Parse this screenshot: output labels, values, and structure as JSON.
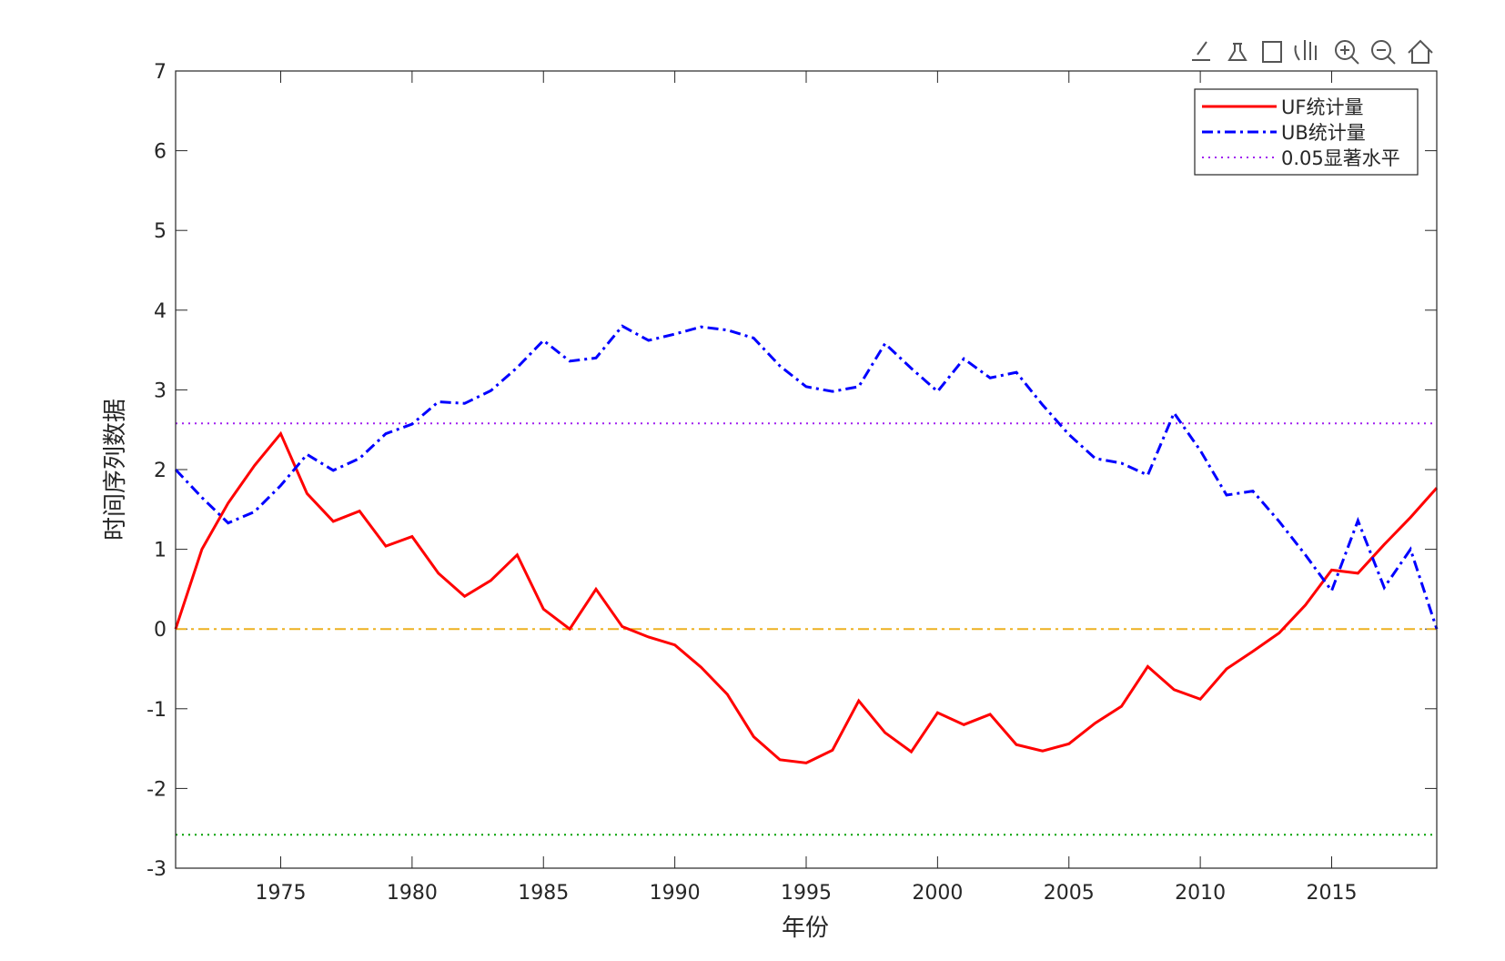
{
  "chart_data": {
    "type": "line",
    "xlabel": "年份",
    "ylabel": "时间序列数据",
    "x": [
      1971,
      1972,
      1973,
      1974,
      1975,
      1976,
      1977,
      1978,
      1979,
      1980,
      1981,
      1982,
      1983,
      1984,
      1985,
      1986,
      1987,
      1988,
      1989,
      1990,
      1991,
      1992,
      1993,
      1994,
      1995,
      1996,
      1997,
      1998,
      1999,
      2000,
      2001,
      2002,
      2003,
      2004,
      2005,
      2006,
      2007,
      2008,
      2009,
      2010,
      2011,
      2012,
      2013,
      2014,
      2015,
      2016,
      2017,
      2018,
      2019
    ],
    "series": [
      {
        "name": "UF统计量",
        "color": "#ff0000",
        "style": "solid",
        "values": [
          0,
          1.0,
          1.58,
          2.05,
          2.45,
          1.7,
          1.35,
          1.48,
          1.04,
          1.16,
          0.7,
          0.41,
          0.61,
          0.93,
          0.25,
          0.0,
          0.5,
          0.03,
          -0.1,
          -0.2,
          -0.48,
          -0.82,
          -1.35,
          -1.64,
          -1.68,
          -1.52,
          -0.9,
          -1.3,
          -1.54,
          -1.05,
          -1.2,
          -1.07,
          -1.45,
          -1.53,
          -1.44,
          -1.18,
          -0.97,
          -0.47,
          -0.76,
          -0.88,
          -0.5,
          -0.28,
          -0.05,
          0.3,
          0.74,
          0.7,
          1.06,
          1.4,
          1.77
        ]
      },
      {
        "name": "UB统计量",
        "color": "#0000ff",
        "style": "dashdot",
        "values": [
          2.0,
          1.65,
          1.33,
          1.47,
          1.8,
          2.19,
          1.99,
          2.14,
          2.45,
          2.57,
          2.85,
          2.83,
          2.99,
          3.28,
          3.62,
          3.36,
          3.4,
          3.8,
          3.62,
          3.7,
          3.79,
          3.75,
          3.65,
          3.3,
          3.04,
          2.98,
          3.04,
          3.58,
          3.27,
          2.98,
          3.39,
          3.15,
          3.22,
          2.81,
          2.44,
          2.14,
          2.08,
          1.93,
          2.71,
          2.24,
          1.68,
          1.73,
          1.35,
          0.93,
          0.48,
          1.36,
          0.52,
          1.0,
          0.0
        ]
      }
    ],
    "hlines": [
      {
        "name": "0.05显著水平",
        "value": 2.58,
        "color": "#a020f0",
        "style": "dotted"
      },
      {
        "value": -2.58,
        "color": "#00a000",
        "style": "dotted"
      },
      {
        "value": 0,
        "color": "#edb120",
        "style": "dashdot"
      }
    ],
    "xlim": [
      1971,
      2019
    ],
    "xticks": [
      1975,
      1980,
      1985,
      1990,
      1995,
      2000,
      2005,
      2010,
      2015
    ],
    "ylim": [
      -3,
      7
    ],
    "yticks": [
      -3,
      -2,
      -1,
      0,
      1,
      2,
      3,
      4,
      5,
      6,
      7
    ],
    "legend": "upper right"
  }
}
